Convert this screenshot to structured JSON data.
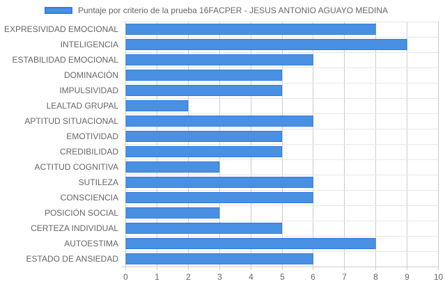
{
  "chart_data": {
    "type": "bar",
    "orientation": "horizontal",
    "series": [
      {
        "name": "Puntaje por criterio de la prueba 16FACPER - JESUS ANTONIO AGUAYO MEDINA",
        "values": [
          8,
          9,
          6,
          5,
          5,
          2,
          6,
          5,
          5,
          3,
          6,
          6,
          3,
          5,
          8,
          6
        ]
      }
    ],
    "categories": [
      "EXPRESIVIDAD EMOCIONAL",
      "INTELIGENCIA",
      "ESTABILIDAD EMOCIONAL",
      "DOMINACIÓN",
      "IMPULSIVIDAD",
      "LEALTAD GRUPAL",
      "APTITUD SITUACIONAL",
      "EMOTIVIDAD",
      "CREDIBILIDAD",
      "ACTITUD COGNITIVA",
      "SUTILEZA",
      "CONSCIENCIA",
      "POSICIÓN SOCIAL",
      "CERTEZA INDIVIDUAL",
      "AUTOESTIMA",
      "ESTADO DE ANSIEDAD"
    ],
    "xlim": [
      0,
      10
    ],
    "xticks": [
      "0",
      "1",
      "2",
      "3",
      "4",
      "5",
      "6",
      "7",
      "8",
      "9",
      "10"
    ],
    "grid": true,
    "legend_position": "top",
    "colors": {
      "bar_fill": "#4a90e2",
      "bar_border": "#2c7be5",
      "grid": "#cccccc"
    }
  }
}
